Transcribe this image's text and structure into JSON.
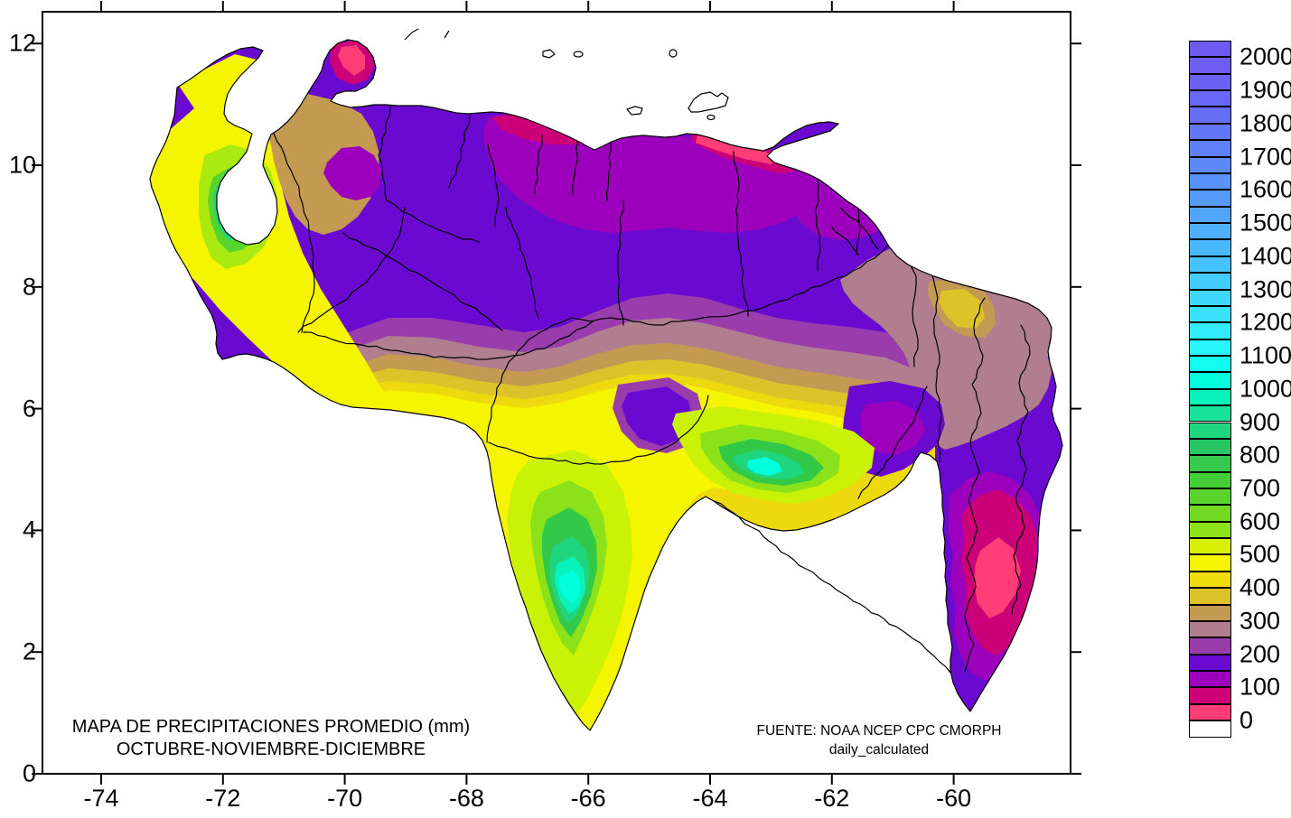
{
  "title": {
    "line1": "MAPA DE PRECIPITACIONES PROMEDIO (mm)",
    "line2": "OCTUBRE-NOVIEMBRE-DICIEMBRE"
  },
  "source": {
    "line1": "FUENTE: NOAA NCEP CPC CMORPH",
    "line2": "daily_calculated"
  },
  "axes": {
    "x_tick_labels": [
      "-74",
      "-72",
      "-70",
      "-68",
      "-66",
      "-64",
      "-62",
      "-60"
    ],
    "x_tick_values": [
      -74,
      -72,
      -70,
      -68,
      -66,
      -64,
      -62,
      -60
    ],
    "y_tick_labels": [
      "0",
      "2",
      "4",
      "6",
      "8",
      "10",
      "12"
    ],
    "y_tick_values": [
      0,
      2,
      4,
      6,
      8,
      10,
      12
    ]
  },
  "legend": {
    "labels_top_to_bottom": [
      "2000",
      "1900",
      "1800",
      "1700",
      "1600",
      "1500",
      "1400",
      "1300",
      "1200",
      "1100",
      "1000",
      "900",
      "800",
      "700",
      "600",
      "500",
      "400",
      "300",
      "200",
      "100",
      "0"
    ],
    "cells_top_to_bottom": [
      "#6f5af0",
      "#6d5ef1",
      "#6b62f3",
      "#6866f4",
      "#656ef5",
      "#6277f6",
      "#5f80f7",
      "#5c89f8",
      "#5992f9",
      "#569bfa",
      "#52a5fa",
      "#4eaffb",
      "#4ab9fb",
      "#46c3fc",
      "#42cdfc",
      "#3ed7fd",
      "#39e1fd",
      "#33ebfe",
      "#28f5fc",
      "#12fdf0",
      "#00ffdc",
      "#0af2bc",
      "#16e39c",
      "#20d57e",
      "#28c763",
      "#35ca4b",
      "#46ce38",
      "#5ad42d",
      "#72da23",
      "#8ee219",
      "#d8f005",
      "#f5f500",
      "#f0dc0a",
      "#dcc32a",
      "#c49a52",
      "#b07e8e",
      "#993dac",
      "#6a0ad0",
      "#9c00bc",
      "#cc0077",
      "#ff3d77",
      "#ffffff"
    ]
  }
}
